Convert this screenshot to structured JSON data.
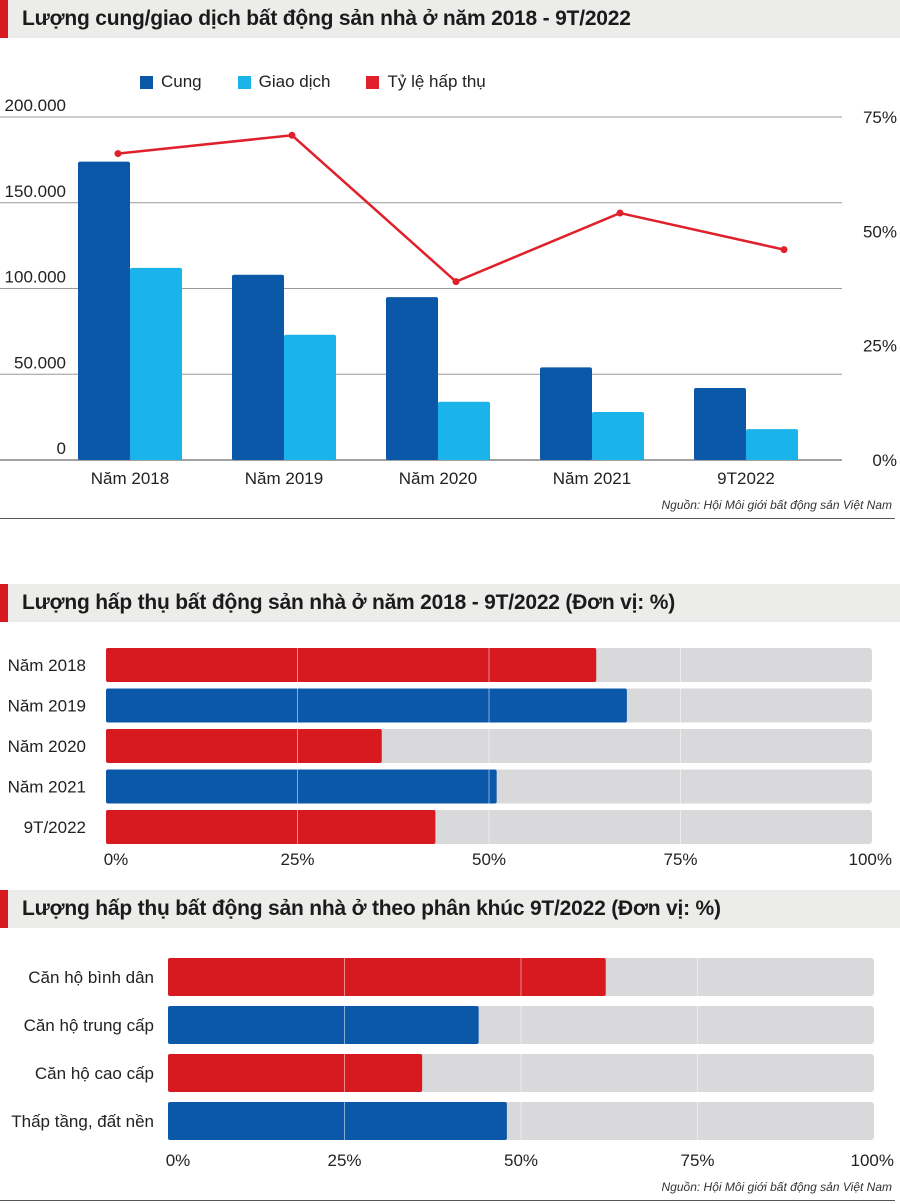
{
  "colors": {
    "supply": "#0a58a7",
    "transaction": "#1ab3ea",
    "rate": "#e0202a",
    "red_bar": "#d71920",
    "blue_bar": "#0a58a7",
    "track": "#d9d9dc",
    "accent": "#d71920"
  },
  "section1": {
    "title": "Lượng cung/giao dịch bất động sản nhà ở năm 2018 - 9T/2022",
    "source": "Nguồn: Hội Môi giới bất động sản Việt Nam"
  },
  "section2": {
    "title": "Lượng hấp thụ bất động sản nhà ở năm 2018 - 9T/2022 (Đơn vị: %)"
  },
  "section3": {
    "title": "Lượng hấp thụ bất động sản nhà ở theo phân khúc 9T/2022  (Đơn vị: %)",
    "source": "Nguồn: Hội Môi giới bất động sản Việt Nam"
  },
  "chart_data": [
    {
      "type": "bar",
      "categories": [
        "Năm 2018",
        "Năm 2019",
        "Năm 2020",
        "Năm 2021",
        "9T2022"
      ],
      "series": [
        {
          "name": "Cung",
          "values": [
            174000,
            108000,
            95000,
            54000,
            42000
          ]
        },
        {
          "name": "Giao dịch",
          "values": [
            112000,
            73000,
            34000,
            28000,
            18000
          ]
        },
        {
          "name": "Tỷ lệ hấp thụ",
          "type": "line",
          "axis": "right",
          "values": [
            67,
            71,
            39,
            54,
            46
          ]
        }
      ],
      "ylim": [
        0,
        200000
      ],
      "y_ticks": [
        "0",
        "50.000",
        "100.000",
        "150.000",
        "200.000"
      ],
      "y2lim": [
        0,
        75
      ],
      "y2_ticks": [
        "0%",
        "25%",
        "50%",
        "75%"
      ],
      "legend_position": "top"
    },
    {
      "type": "bar",
      "orientation": "horizontal",
      "categories": [
        "Năm 2018",
        "Năm 2019",
        "Năm 2020",
        "Năm 2021",
        "9T/2022"
      ],
      "values": [
        64,
        68,
        36,
        51,
        43
      ],
      "bar_colors": [
        "red",
        "blue",
        "red",
        "blue",
        "red"
      ],
      "xlim": [
        0,
        100
      ],
      "x_ticks": [
        "0%",
        "25%",
        "50%",
        "75%",
        "100%"
      ]
    },
    {
      "type": "bar",
      "orientation": "horizontal",
      "categories": [
        "Căn hộ bình dân",
        "Căn hộ trung cấp",
        "Căn hộ cao cấp",
        "Thấp tầng, đất nền"
      ],
      "values": [
        62,
        44,
        36,
        48
      ],
      "bar_colors": [
        "red",
        "blue",
        "red",
        "blue"
      ],
      "xlim": [
        0,
        100
      ],
      "x_ticks": [
        "0%",
        "25%",
        "50%",
        "75%",
        "100%"
      ]
    }
  ]
}
